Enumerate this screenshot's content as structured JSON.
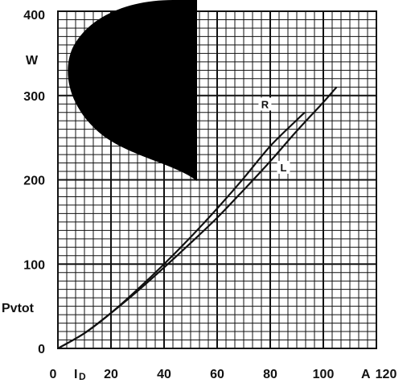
{
  "chart_data": {
    "type": "line",
    "xlabel": "I",
    "xlabel_subscript": "D",
    "x_unit": "A",
    "ylabel": "Pvtot",
    "y_unit": "W",
    "xlim": [
      0,
      120
    ],
    "ylim": [
      0,
      400
    ],
    "x_tick_labels": [
      "0",
      "20",
      "40",
      "60",
      "80",
      "100",
      "120"
    ],
    "y_tick_labels": [
      "0",
      "100",
      "200",
      "300",
      "400"
    ],
    "grid": true,
    "watermark": "S",
    "series": [
      {
        "name": "R",
        "x": [
          0,
          10,
          20,
          30,
          40,
          50,
          60,
          70,
          80,
          90,
          93
        ],
        "y": [
          0,
          18,
          42,
          70,
          100,
          132,
          166,
          202,
          240,
          271,
          280
        ]
      },
      {
        "name": "L",
        "x": [
          0,
          10,
          20,
          30,
          40,
          50,
          60,
          70,
          80,
          90,
          100,
          105
        ],
        "y": [
          0,
          18,
          42,
          68,
          96,
          125,
          155,
          188,
          222,
          258,
          292,
          310
        ]
      }
    ],
    "colors": {
      "line": "#111111",
      "grid": "#111111",
      "background": "#ffffff"
    }
  }
}
